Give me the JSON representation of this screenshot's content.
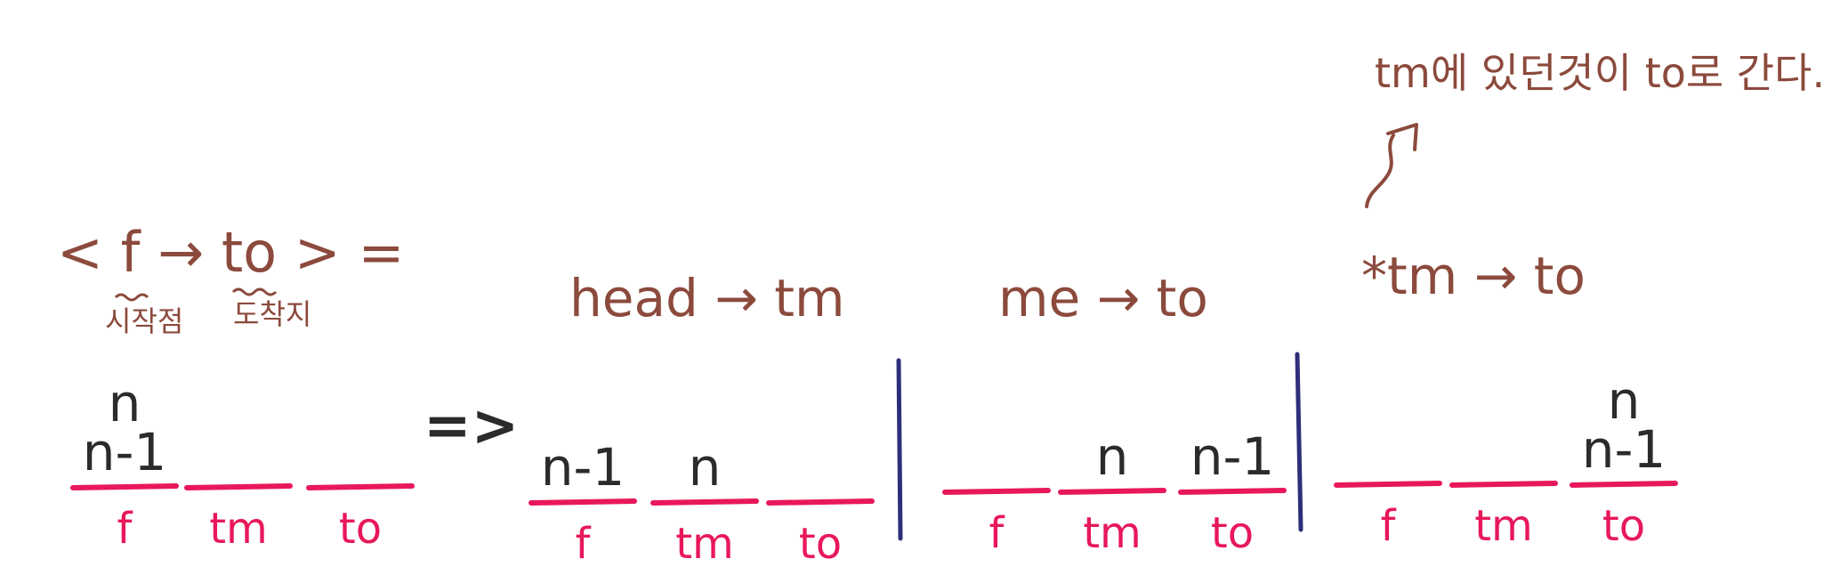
{
  "note": "tm에 있던것이 to로 간다.",
  "definition": {
    "expression": "< f → to > =",
    "from_annotation": "시작점",
    "to_annotation": "도착지"
  },
  "implies": "=>",
  "steps": [
    {
      "label": "head → tm"
    },
    {
      "label": "me → to"
    },
    {
      "label": "*tm → to"
    }
  ],
  "pegs": [
    "f",
    "tm",
    "to"
  ],
  "states": [
    {
      "f": [
        "n",
        "n-1"
      ],
      "tm": [],
      "to": []
    },
    {
      "f": [
        "n-1"
      ],
      "tm": [
        "n"
      ],
      "to": []
    },
    {
      "f": [],
      "tm": [
        "n"
      ],
      "to": [
        "n-1"
      ]
    },
    {
      "f": [],
      "tm": [],
      "to": [
        "n",
        "n-1"
      ]
    }
  ],
  "colors": {
    "annotation": "#8b4a3c",
    "disk": "#2b2b2b",
    "peg": "#e8185a",
    "divider": "#2e2e7a"
  }
}
